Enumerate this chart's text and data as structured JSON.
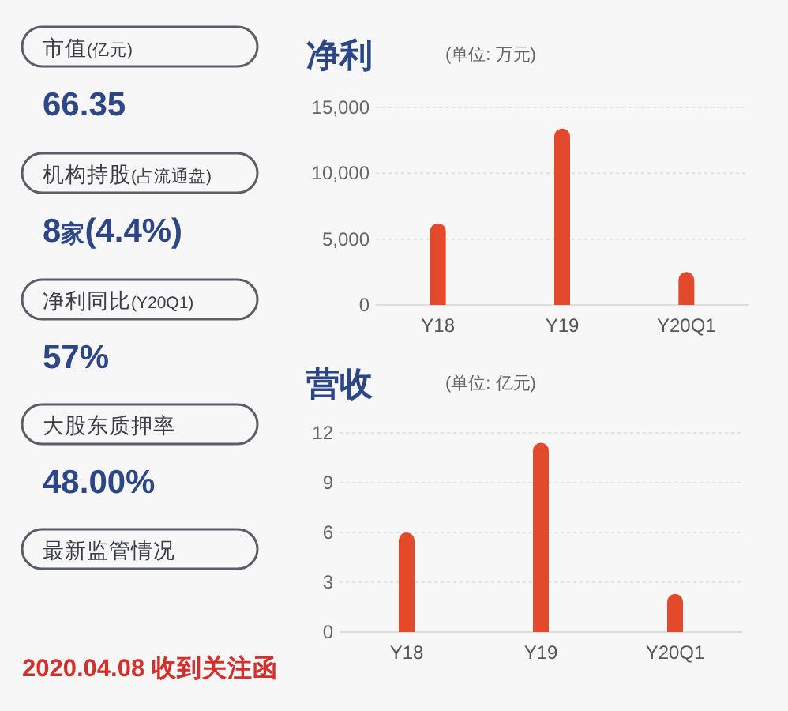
{
  "chart_data": [
    {
      "type": "other",
      "annotations": [
        "市值(亿元)",
        "66.35",
        "机构持股(占流通盘)",
        "8家(4.4%)",
        "净利同比(Y20Q1)",
        "57%",
        "大股东质押率",
        "48.00%",
        "最新监管情况",
        "2020.04.08 收到关注函"
      ]
    },
    {
      "type": "bar",
      "title": "净利",
      "subtitle": "(单位: 万元)",
      "categories": [
        "Y18",
        "Y19",
        "Y20Q1"
      ],
      "values": [
        6200,
        13400,
        2500
      ],
      "color": "#e24a2b",
      "ylim": [
        0,
        15000
      ],
      "yticks": [
        0,
        {
          "value": 5000,
          "label": "5,000"
        },
        {
          "value": 10000,
          "label": "10,000"
        },
        {
          "value": 15000,
          "label": "15,000"
        }
      ],
      "grid": "y"
    },
    {
      "type": "bar",
      "title": "营收",
      "subtitle": "(单位: 亿元)",
      "categories": [
        "Y18",
        "Y19",
        "Y20Q1"
      ],
      "values": [
        6,
        11.4,
        2.3
      ],
      "color": "#e24a2b",
      "ylim": [
        0,
        12
      ],
      "yticks": [
        0,
        3,
        6,
        9,
        12
      ],
      "grid": "y"
    }
  ]
}
